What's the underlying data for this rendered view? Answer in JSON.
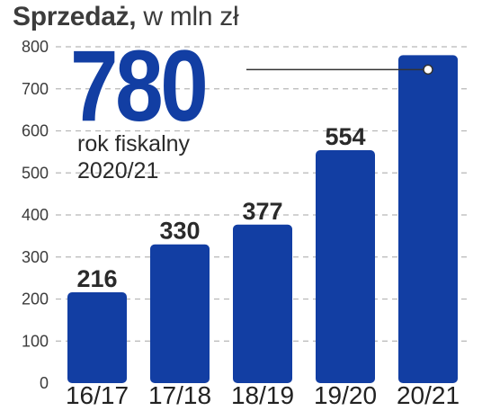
{
  "title": {
    "bold": "Sprzedaż,",
    "rest": "w mln zł"
  },
  "highlight": {
    "value": "780",
    "line1": "rok fiskalny",
    "line2": "2020/21"
  },
  "colors": {
    "bar": "#123ea3",
    "grid": "#b8b8b8",
    "text": "#2a2a2a"
  },
  "chart_data": {
    "type": "bar",
    "title": "Sprzedaż, w mln zł",
    "xlabel": "",
    "ylabel": "",
    "categories": [
      "16/17",
      "17/18",
      "18/19",
      "19/20",
      "20/21"
    ],
    "values": [
      216,
      330,
      377,
      554,
      780
    ],
    "value_labels": [
      "216",
      "330",
      "377",
      "554",
      ""
    ],
    "ylim": [
      0,
      800
    ],
    "yticks": [
      0,
      100,
      200,
      300,
      400,
      500,
      600,
      700,
      800
    ],
    "grid": true,
    "grid_style": "dashed horizontal",
    "legend": "none"
  }
}
